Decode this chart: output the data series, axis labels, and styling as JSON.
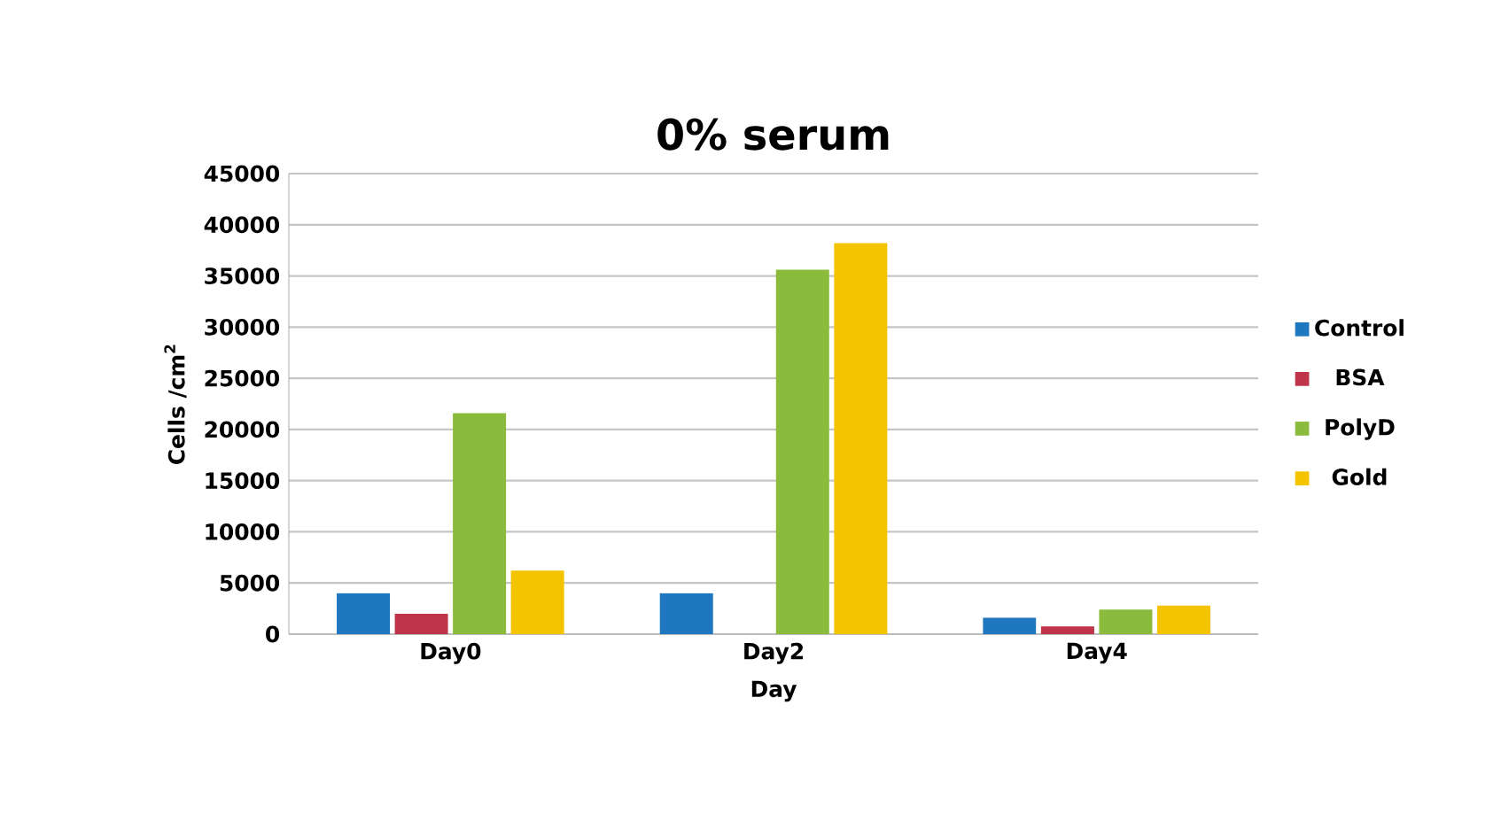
{
  "chart_data": {
    "type": "bar",
    "title": "0% serum",
    "xlabel": "Day",
    "ylabel": "Cells /cm$^{2}$",
    "categories": [
      "Day0",
      "Day2",
      "Day4"
    ],
    "series": [
      {
        "name": "Control",
        "color": "#1f77c0",
        "values": [
          4000,
          4000,
          1600
        ]
      },
      {
        "name": "BSA",
        "color": "#c0344a",
        "values": [
          2000,
          0,
          750
        ]
      },
      {
        "name": "PolyD",
        "color": "#8bbb3c",
        "values": [
          21600,
          35600,
          2400
        ]
      },
      {
        "name": "Gold",
        "color": "#f5c400",
        "values": [
          6200,
          38200,
          2800
        ]
      }
    ],
    "ylim": [
      0,
      45000
    ],
    "yticks": [
      0,
      5000,
      10000,
      15000,
      20000,
      25000,
      30000,
      35000,
      40000,
      45000
    ],
    "grid": "y",
    "legend": "right"
  }
}
